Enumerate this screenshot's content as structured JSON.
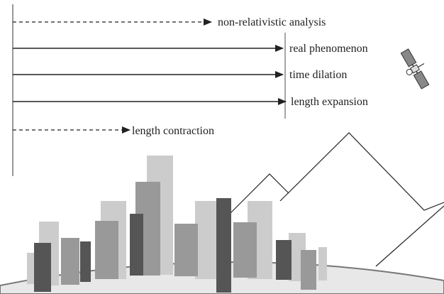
{
  "diagram": {
    "labels": {
      "non_relativistic": "non-relativistic analysis",
      "real_phenomenon": "real phenomenon",
      "time_dilation": "time dilation",
      "length_expansion": "length expansion",
      "length_contraction": "length contraction"
    },
    "icons": {
      "satellite": "satellite-icon"
    },
    "colors": {
      "arrow": "#222222",
      "building_dark": "#555555",
      "building_mid": "#999999",
      "building_light": "#cccccc",
      "ground": "#e6e6e6"
    }
  }
}
